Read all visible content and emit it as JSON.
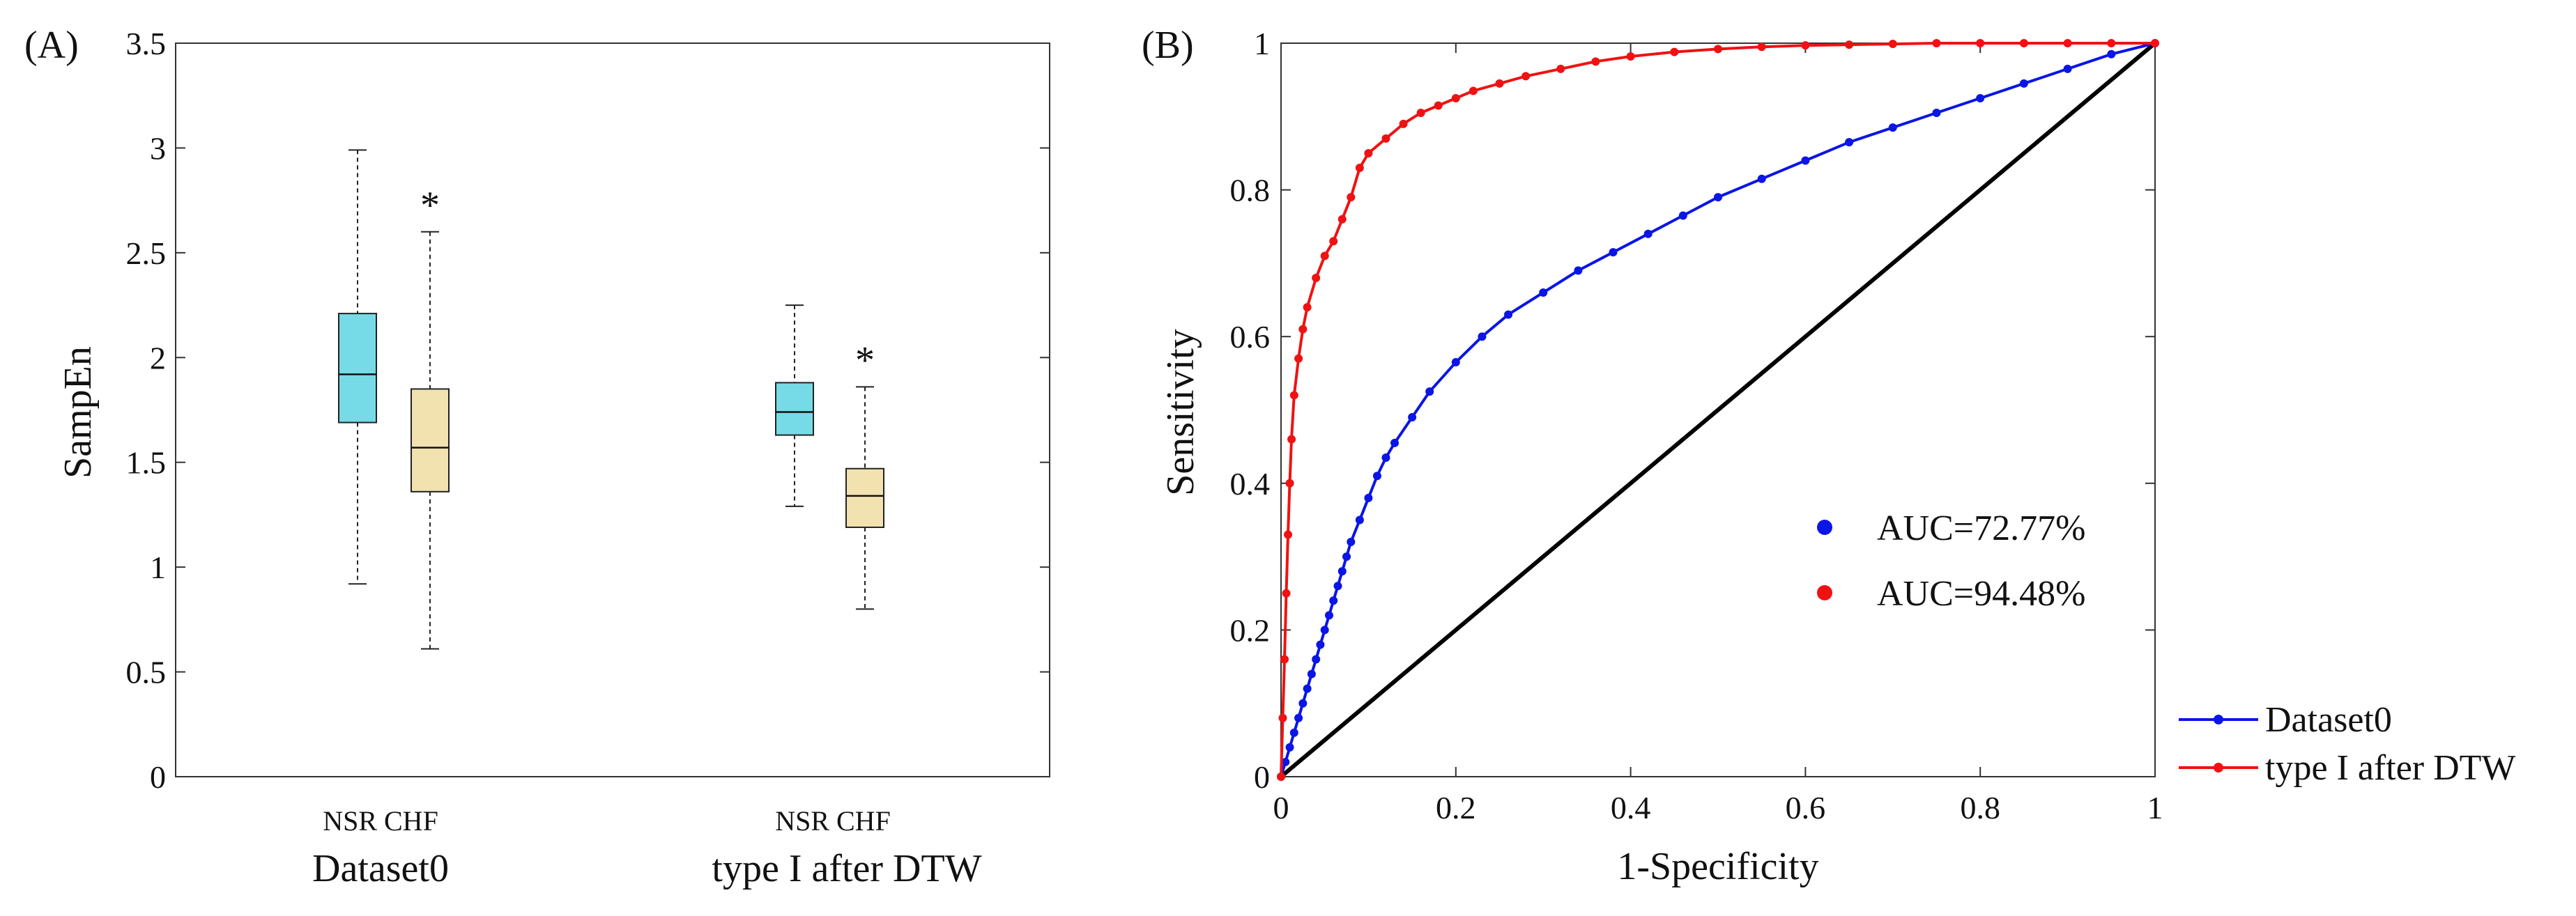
{
  "figure": {
    "panel_a_label": "(A)",
    "panel_b_label": "(B)"
  },
  "colors": {
    "nsr_box": "#76dbe6",
    "chf_box": "#f2e2b0",
    "roc_dataset0": "#0a15e6",
    "roc_type1": "#ef1212",
    "diagonal": "#000000"
  },
  "chart_data": [
    {
      "type": "box",
      "panel": "A",
      "ylabel": "SampEn",
      "xlabel": "",
      "ylim": [
        0,
        3.5
      ],
      "yticks": [
        "0",
        "0.5",
        "1",
        "1.5",
        "2",
        "2.5",
        "3",
        "3.5"
      ],
      "group_class_labels": "NSR CHF",
      "groups": [
        {
          "name": "Dataset0",
          "boxes": [
            {
              "class": "NSR",
              "min": 0.92,
              "q1": 1.69,
              "median": 1.92,
              "q3": 2.21,
              "max": 2.99,
              "significant": false
            },
            {
              "class": "CHF",
              "min": 0.61,
              "q1": 1.36,
              "median": 1.57,
              "q3": 1.85,
              "max": 2.6,
              "significant": true,
              "marker": "*"
            }
          ]
        },
        {
          "name": "type I after DTW",
          "boxes": [
            {
              "class": "NSR",
              "min": 1.29,
              "q1": 1.63,
              "median": 1.74,
              "q3": 1.88,
              "max": 2.25,
              "significant": false
            },
            {
              "class": "CHF",
              "min": 0.8,
              "q1": 1.19,
              "median": 1.34,
              "q3": 1.47,
              "max": 1.86,
              "significant": true,
              "marker": "*"
            }
          ]
        }
      ]
    },
    {
      "type": "line",
      "panel": "B",
      "xlabel": "1-Specificity",
      "ylabel": "Sensitivity",
      "xlim": [
        0,
        1
      ],
      "ylim": [
        0,
        1
      ],
      "xticks": [
        "0",
        "0.2",
        "0.4",
        "0.6",
        "0.8",
        "1"
      ],
      "yticks": [
        "0",
        "0.2",
        "0.4",
        "0.6",
        "0.8",
        "1"
      ],
      "reference_line": [
        [
          0,
          0
        ],
        [
          1,
          1
        ]
      ],
      "auc_labels": [
        "AUC=72.77%",
        "AUC=94.48%"
      ],
      "series": [
        {
          "name": "Dataset0",
          "auc": "AUC=72.77%",
          "x": [
            0,
            0.005,
            0.01,
            0.015,
            0.02,
            0.025,
            0.03,
            0.035,
            0.04,
            0.045,
            0.05,
            0.055,
            0.06,
            0.065,
            0.07,
            0.075,
            0.08,
            0.09,
            0.1,
            0.11,
            0.12,
            0.13,
            0.15,
            0.17,
            0.2,
            0.23,
            0.26,
            0.3,
            0.34,
            0.38,
            0.42,
            0.46,
            0.5,
            0.55,
            0.6,
            0.65,
            0.7,
            0.75,
            0.8,
            0.85,
            0.9,
            0.95,
            1
          ],
          "y": [
            0,
            0.02,
            0.04,
            0.06,
            0.08,
            0.1,
            0.12,
            0.14,
            0.16,
            0.18,
            0.2,
            0.22,
            0.24,
            0.26,
            0.28,
            0.3,
            0.32,
            0.35,
            0.38,
            0.41,
            0.435,
            0.455,
            0.49,
            0.525,
            0.565,
            0.6,
            0.63,
            0.66,
            0.69,
            0.715,
            0.74,
            0.765,
            0.79,
            0.815,
            0.84,
            0.865,
            0.885,
            0.905,
            0.925,
            0.945,
            0.965,
            0.985,
            1
          ]
        },
        {
          "name": "type I after DTW",
          "auc": "AUC=94.48%",
          "x": [
            0,
            0.002,
            0.004,
            0.006,
            0.008,
            0.01,
            0.012,
            0.015,
            0.02,
            0.025,
            0.03,
            0.04,
            0.05,
            0.06,
            0.07,
            0.08,
            0.09,
            0.1,
            0.12,
            0.14,
            0.16,
            0.18,
            0.2,
            0.22,
            0.25,
            0.28,
            0.32,
            0.36,
            0.4,
            0.45,
            0.5,
            0.55,
            0.6,
            0.65,
            0.7,
            0.75,
            0.8,
            0.85,
            0.9,
            0.95,
            1
          ],
          "y": [
            0,
            0.08,
            0.16,
            0.25,
            0.33,
            0.4,
            0.46,
            0.52,
            0.57,
            0.61,
            0.64,
            0.68,
            0.71,
            0.73,
            0.76,
            0.79,
            0.83,
            0.85,
            0.87,
            0.89,
            0.905,
            0.915,
            0.925,
            0.935,
            0.945,
            0.955,
            0.965,
            0.975,
            0.982,
            0.988,
            0.992,
            0.995,
            0.997,
            0.998,
            0.999,
            1,
            1,
            1,
            1,
            1,
            1
          ]
        }
      ]
    }
  ]
}
